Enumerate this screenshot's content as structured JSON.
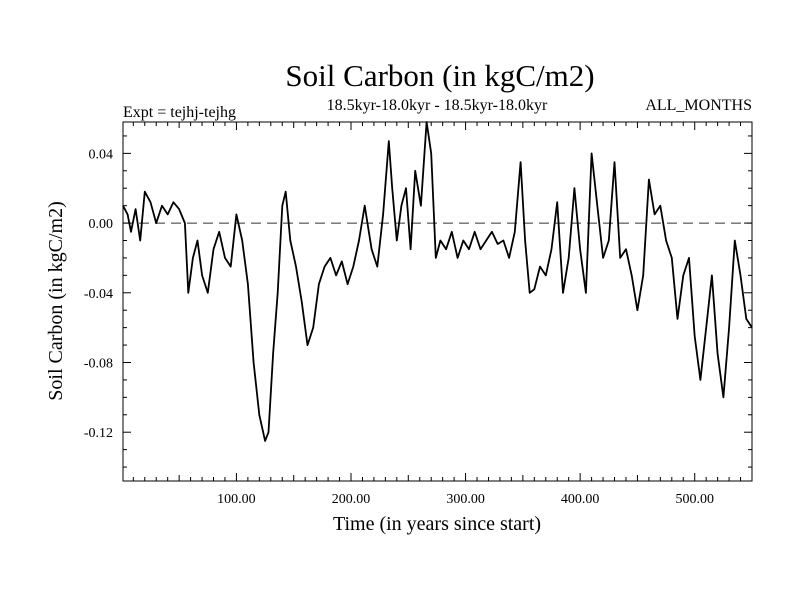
{
  "chart_data": {
    "type": "line",
    "title": "Soil Carbon (in kgC/m2)",
    "subtitle_left": "Expt = tejhj-tejhg",
    "subtitle_center": "18.5kyr-18.0kyr - 18.5kyr-18.0kyr",
    "subtitle_right": "ALL_MONTHS",
    "xlabel": "Time (in years since start)",
    "ylabel": "Soil Carbon (in kgC/m2)",
    "xlim": [
      1,
      550
    ],
    "ylim": [
      -0.148,
      0.058
    ],
    "x_ticks": [
      100,
      200,
      300,
      400,
      500
    ],
    "x_tick_labels": [
      "100.00",
      "200.00",
      "300.00",
      "400.00",
      "500.00"
    ],
    "y_ticks": [
      0.04,
      0.0,
      -0.04,
      -0.08,
      -0.12
    ],
    "y_tick_labels": [
      "0.04",
      "0.00",
      "-0.04",
      "-0.08",
      "-0.12"
    ],
    "reference_line": {
      "y": 0.0,
      "style": "dashed"
    },
    "series": [
      {
        "name": "Soil Carbon",
        "x": [
          1,
          5,
          8,
          12,
          16,
          20,
          25,
          30,
          35,
          40,
          45,
          50,
          55,
          58,
          62,
          66,
          70,
          75,
          80,
          85,
          90,
          95,
          100,
          105,
          110,
          115,
          120,
          125,
          128,
          132,
          136,
          140,
          143,
          147,
          152,
          157,
          162,
          167,
          172,
          177,
          182,
          187,
          192,
          197,
          202,
          207,
          212,
          218,
          223,
          228,
          233,
          236,
          240,
          244,
          248,
          252,
          256,
          261,
          266,
          270,
          274,
          278,
          283,
          288,
          293,
          298,
          303,
          308,
          313,
          318,
          323,
          328,
          333,
          338,
          343,
          348,
          352,
          356,
          360,
          365,
          370,
          375,
          380,
          385,
          390,
          395,
          400,
          405,
          410,
          415,
          420,
          425,
          430,
          435,
          440,
          445,
          450,
          455,
          460,
          465,
          470,
          475,
          480,
          485,
          490,
          495,
          500,
          505,
          510,
          515,
          520,
          525,
          530,
          535,
          540,
          545,
          550
        ],
        "y": [
          0.01,
          0.005,
          -0.005,
          0.008,
          -0.01,
          0.018,
          0.012,
          0.0,
          0.01,
          0.005,
          0.012,
          0.008,
          0.0,
          -0.04,
          -0.02,
          -0.01,
          -0.03,
          -0.04,
          -0.015,
          -0.005,
          -0.02,
          -0.025,
          0.005,
          -0.01,
          -0.035,
          -0.08,
          -0.11,
          -0.125,
          -0.12,
          -0.075,
          -0.04,
          0.01,
          0.018,
          -0.01,
          -0.025,
          -0.045,
          -0.07,
          -0.06,
          -0.035,
          -0.025,
          -0.02,
          -0.03,
          -0.022,
          -0.035,
          -0.025,
          -0.01,
          0.01,
          -0.015,
          -0.025,
          0.005,
          0.047,
          0.02,
          -0.01,
          0.01,
          0.02,
          -0.015,
          0.03,
          0.01,
          0.058,
          0.04,
          -0.02,
          -0.01,
          -0.015,
          -0.005,
          -0.02,
          -0.01,
          -0.015,
          -0.005,
          -0.015,
          -0.01,
          -0.005,
          -0.012,
          -0.01,
          -0.02,
          -0.005,
          0.035,
          -0.01,
          -0.04,
          -0.038,
          -0.025,
          -0.03,
          -0.015,
          0.012,
          -0.04,
          -0.02,
          0.02,
          -0.015,
          -0.04,
          0.04,
          0.01,
          -0.02,
          -0.01,
          0.035,
          -0.02,
          -0.015,
          -0.03,
          -0.05,
          -0.03,
          0.025,
          0.005,
          0.01,
          -0.01,
          -0.02,
          -0.055,
          -0.03,
          -0.02,
          -0.065,
          -0.09,
          -0.06,
          -0.03,
          -0.075,
          -0.1,
          -0.06,
          -0.01,
          -0.03,
          -0.055,
          -0.06
        ]
      }
    ]
  }
}
